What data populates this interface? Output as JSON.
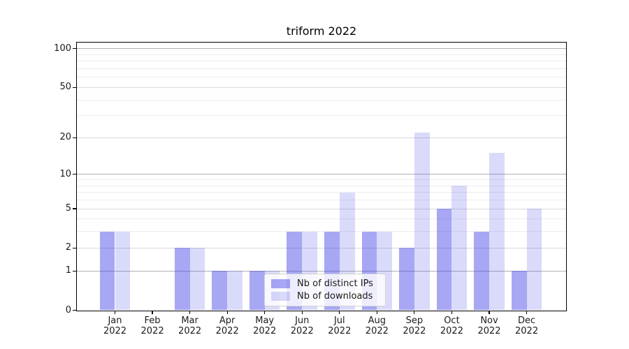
{
  "title": "triform 2022",
  "chart_data": {
    "type": "bar",
    "title": "triform 2022",
    "categories": [
      "Jan 2022",
      "Feb 2022",
      "Mar 2022",
      "Apr 2022",
      "May 2022",
      "Jun 2022",
      "Jul 2022",
      "Aug 2022",
      "Sep 2022",
      "Oct 2022",
      "Nov 2022",
      "Dec 2022"
    ],
    "series": [
      {
        "name": "Nb of distinct IPs",
        "color": "rgba(60,60,230,0.45)",
        "values": [
          3,
          0,
          2,
          1,
          1,
          3,
          3,
          3,
          2,
          5,
          3,
          1
        ]
      },
      {
        "name": "Nb of downloads",
        "color": "rgba(60,60,230,0.19)",
        "values": [
          3,
          0,
          2,
          1,
          1,
          3,
          7,
          3,
          22,
          8,
          15,
          5
        ]
      }
    ],
    "xlabel": "",
    "ylabel": "",
    "yscale": "log1p",
    "ylim": [
      0,
      111
    ],
    "yticks": [
      0,
      1,
      2,
      5,
      10,
      20,
      50,
      100
    ],
    "grid": {
      "strong": [
        1,
        10,
        100
      ],
      "medium": [
        2,
        5,
        20,
        50
      ],
      "faint": [
        3,
        4,
        6,
        7,
        8,
        9,
        30,
        40,
        60,
        70,
        80,
        90
      ]
    },
    "legend_position": "inside lower-center",
    "grid_on": true
  }
}
